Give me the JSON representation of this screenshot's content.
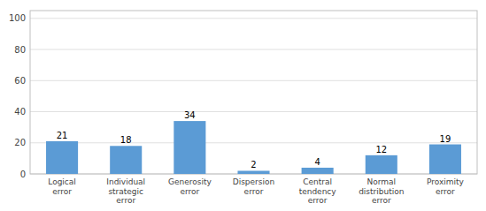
{
  "chart_data": {
    "type": "bar",
    "categories": [
      "Logical\nerror",
      "Individual\nstrategic\nerror",
      "Generosity\nerror",
      "Dispersion\nerror",
      "Central\ntendency\nerror",
      "Normal\ndistribution\nerror",
      "Proximity\nerror"
    ],
    "values": [
      21,
      18,
      34,
      2,
      4,
      12,
      19
    ],
    "color": "#5b9bd5",
    "ylim": [
      0,
      105
    ],
    "yticks": [
      0,
      20,
      40,
      60,
      80,
      100
    ],
    "grid": true,
    "data_labels": true
  }
}
